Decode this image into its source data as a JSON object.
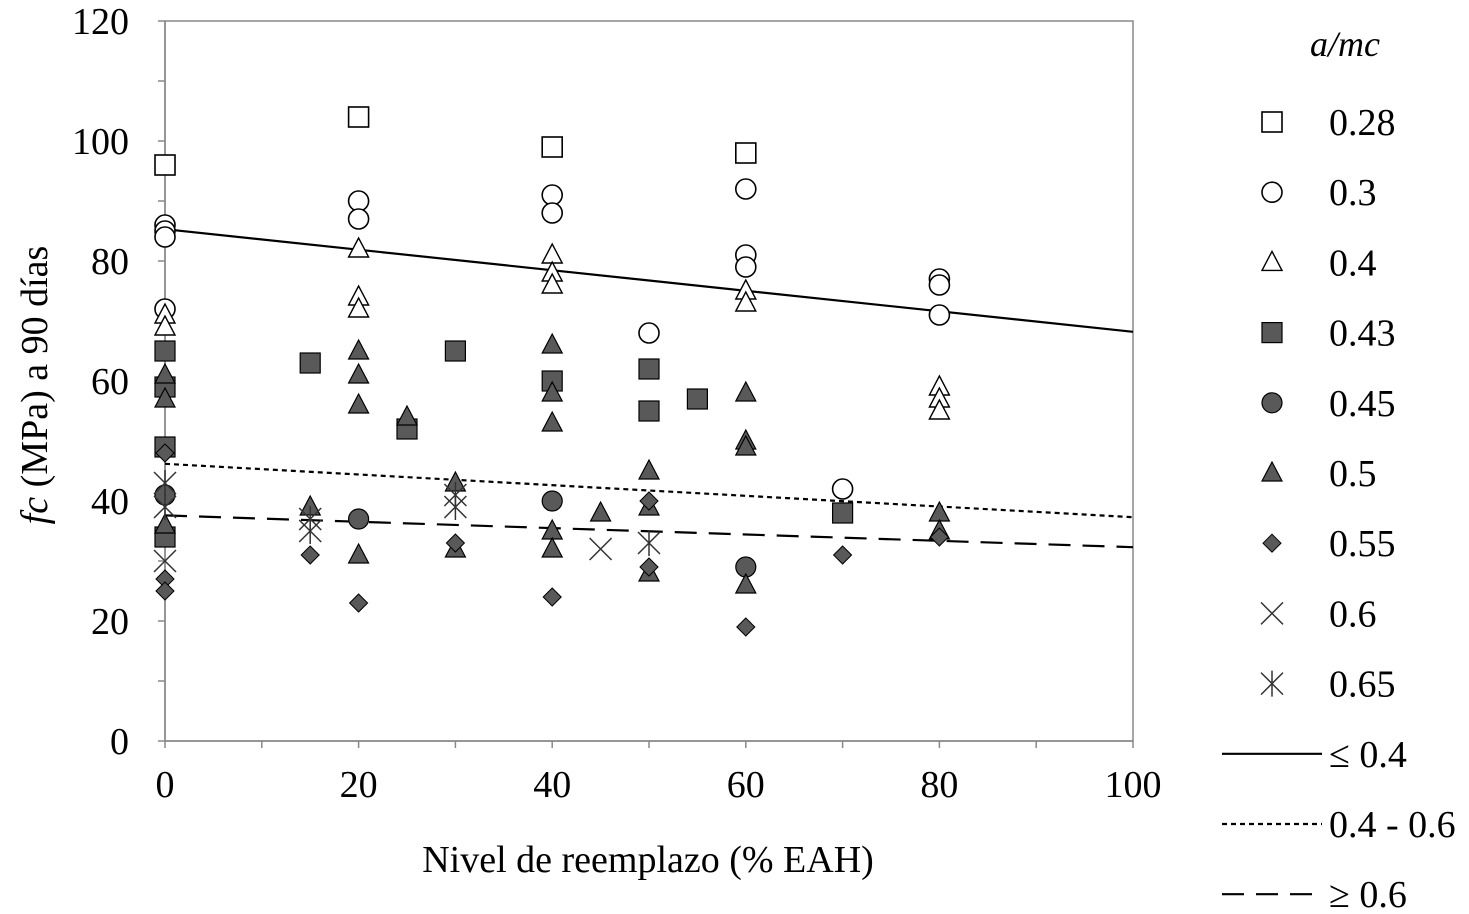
{
  "chart_data": {
    "type": "scatter",
    "xlabel": "Nivel  de reemplazo (% EAH)",
    "ylabel_italic": "fc",
    "ylabel_rest": " (MPa) a 90 días",
    "xlim": [
      0,
      100
    ],
    "ylim": [
      0,
      120
    ],
    "xticks": [
      0,
      20,
      40,
      60,
      80,
      100
    ],
    "yticks": [
      0,
      20,
      40,
      60,
      80,
      100,
      120
    ],
    "grid": false,
    "legend_title": "a/mc",
    "legend_position": "right",
    "series": [
      {
        "name": "0.28",
        "marker": "square-open",
        "points": [
          [
            0,
            96
          ],
          [
            20,
            104
          ],
          [
            40,
            99
          ],
          [
            60,
            98
          ]
        ]
      },
      {
        "name": "0.3",
        "marker": "circle-open",
        "points": [
          [
            0,
            86
          ],
          [
            0,
            85
          ],
          [
            0,
            84
          ],
          [
            0,
            72
          ],
          [
            20,
            90
          ],
          [
            20,
            87
          ],
          [
            40,
            91
          ],
          [
            40,
            88
          ],
          [
            50,
            68
          ],
          [
            60,
            92
          ],
          [
            60,
            81
          ],
          [
            60,
            79
          ],
          [
            70,
            42
          ],
          [
            80,
            77
          ],
          [
            80,
            76
          ],
          [
            80,
            71
          ]
        ]
      },
      {
        "name": "0.4",
        "marker": "triangle-open",
        "points": [
          [
            0,
            71
          ],
          [
            0,
            69
          ],
          [
            20,
            82
          ],
          [
            20,
            74
          ],
          [
            20,
            72
          ],
          [
            40,
            81
          ],
          [
            40,
            78
          ],
          [
            40,
            76
          ],
          [
            60,
            75
          ],
          [
            60,
            73
          ],
          [
            80,
            59
          ],
          [
            80,
            57
          ],
          [
            80,
            55
          ]
        ]
      },
      {
        "name": "0.43",
        "marker": "square-filled",
        "points": [
          [
            0,
            65
          ],
          [
            0,
            59
          ],
          [
            0,
            49
          ],
          [
            0,
            34
          ],
          [
            15,
            63
          ],
          [
            25,
            52
          ],
          [
            30,
            65
          ],
          [
            40,
            60
          ],
          [
            50,
            62
          ],
          [
            50,
            55
          ],
          [
            55,
            57
          ],
          [
            70,
            38
          ]
        ]
      },
      {
        "name": "0.45",
        "marker": "circle-filled",
        "points": [
          [
            0,
            41
          ],
          [
            20,
            37
          ],
          [
            40,
            40
          ],
          [
            60,
            29
          ]
        ]
      },
      {
        "name": "0.5",
        "marker": "triangle-filled",
        "points": [
          [
            0,
            61
          ],
          [
            0,
            57
          ],
          [
            0,
            36
          ],
          [
            15,
            39
          ],
          [
            20,
            65
          ],
          [
            20,
            61
          ],
          [
            20,
            56
          ],
          [
            20,
            31
          ],
          [
            25,
            54
          ],
          [
            30,
            43
          ],
          [
            30,
            32
          ],
          [
            40,
            66
          ],
          [
            40,
            58
          ],
          [
            40,
            53
          ],
          [
            40,
            35
          ],
          [
            40,
            32
          ],
          [
            45,
            38
          ],
          [
            50,
            45
          ],
          [
            50,
            39
          ],
          [
            50,
            28
          ],
          [
            60,
            58
          ],
          [
            60,
            50
          ],
          [
            60,
            49
          ],
          [
            60,
            26
          ],
          [
            80,
            38
          ],
          [
            80,
            35
          ]
        ]
      },
      {
        "name": "0.55",
        "marker": "diamond-filled",
        "points": [
          [
            0,
            48
          ],
          [
            0,
            27
          ],
          [
            0,
            25
          ],
          [
            15,
            31
          ],
          [
            20,
            23
          ],
          [
            30,
            33
          ],
          [
            40,
            24
          ],
          [
            50,
            40
          ],
          [
            50,
            29
          ],
          [
            60,
            19
          ],
          [
            70,
            31
          ],
          [
            80,
            34
          ]
        ]
      },
      {
        "name": "0.6",
        "marker": "x",
        "points": [
          [
            0,
            30
          ],
          [
            45,
            32
          ]
        ]
      },
      {
        "name": "0.65",
        "marker": "asterisk",
        "points": [
          [
            0,
            43
          ],
          [
            0,
            39
          ],
          [
            15,
            37
          ],
          [
            15,
            35
          ],
          [
            30,
            41
          ],
          [
            30,
            39
          ],
          [
            50,
            33
          ]
        ]
      }
    ],
    "trendlines": [
      {
        "name": "≤ 0.4",
        "style": "solid",
        "points": [
          [
            0,
            85.3
          ],
          [
            100,
            68.2
          ]
        ]
      },
      {
        "name": "0.4 - 0.6",
        "style": "dotted",
        "points": [
          [
            0,
            46.2
          ],
          [
            100,
            37.3
          ]
        ]
      },
      {
        "name": "≥ 0.6",
        "style": "dashed",
        "points": [
          [
            0,
            37.6
          ],
          [
            100,
            32.3
          ]
        ]
      }
    ],
    "colors": {
      "filled": "#595959",
      "open_fill": "#ffffff",
      "stroke": "#000000"
    }
  }
}
